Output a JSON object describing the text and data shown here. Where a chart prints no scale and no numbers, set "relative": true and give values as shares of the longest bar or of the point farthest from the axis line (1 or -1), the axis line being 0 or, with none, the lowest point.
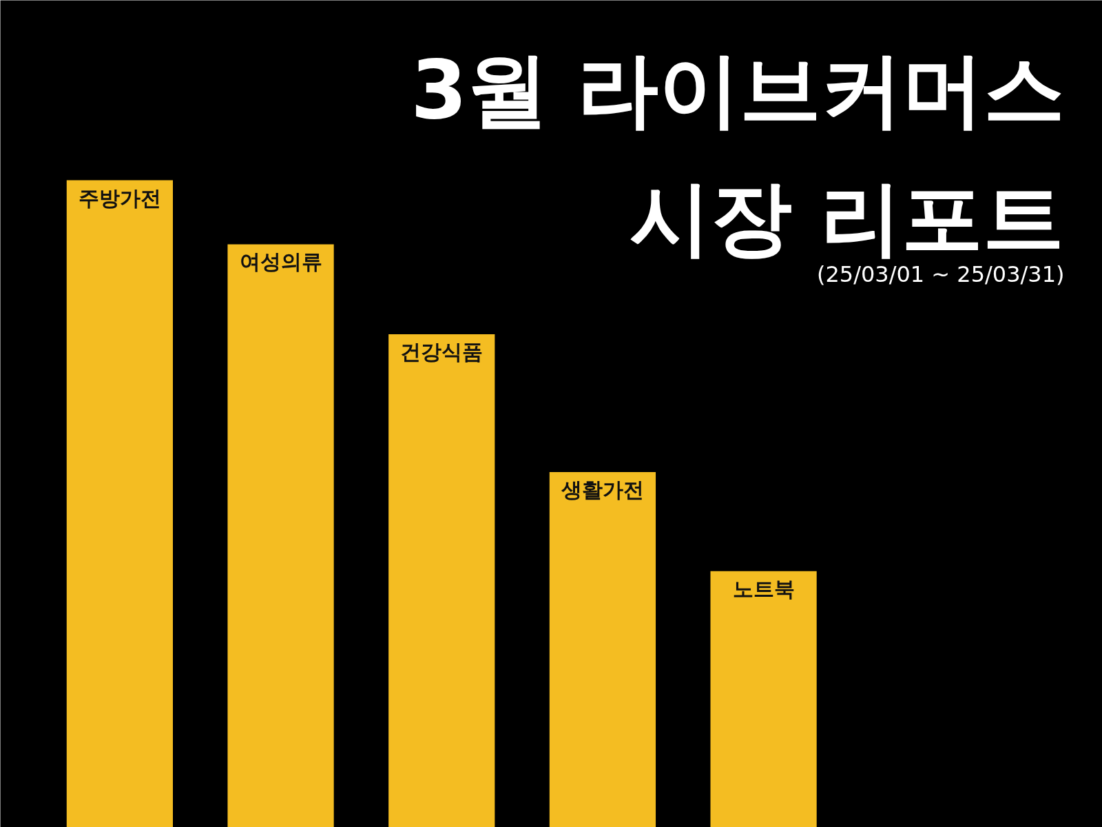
{
  "chart_data": {
    "type": "bar",
    "title": "3월 라이브커머스\n시장 리포트",
    "subtitle": "(25/03/01 ~ 25/03/31)",
    "relative": true,
    "categories": [
      "주방가전",
      "여성의류",
      "건강식품",
      "생활가전",
      "노트북"
    ],
    "values": [
      1,
      0.901,
      0.762,
      0.549,
      0.396
    ],
    "color": "#f4bd22"
  }
}
